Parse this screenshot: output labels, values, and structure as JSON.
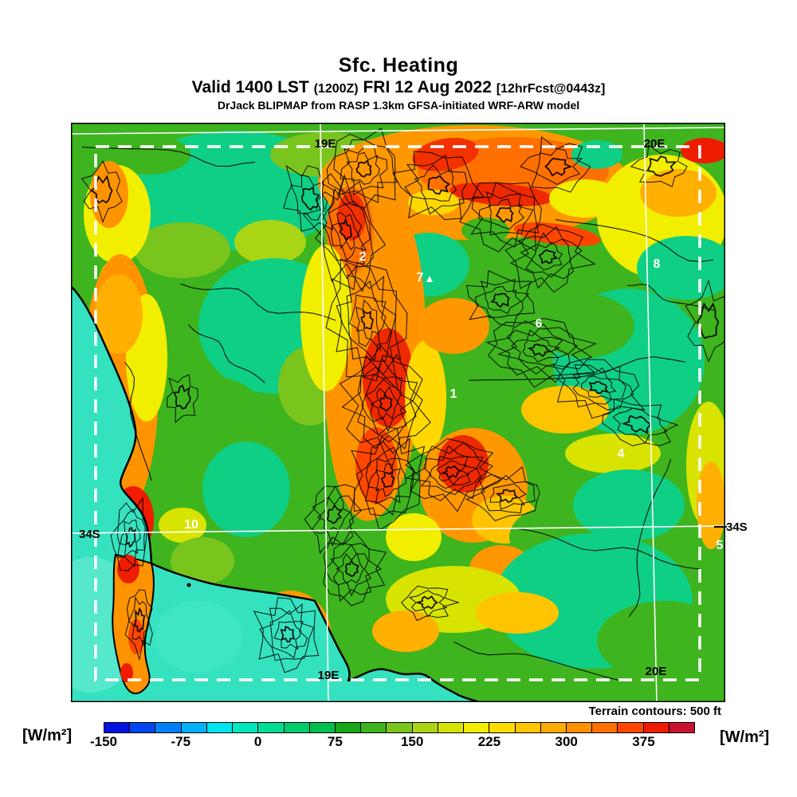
{
  "header": {
    "title": "Sfc. Heating",
    "valid": {
      "prefix": "Valid 1400 LST",
      "zulu": "(1200Z)",
      "date": "FRI 12 Aug 2022",
      "fcst": "[12hrFcst@0443z]"
    },
    "model": "DrJack BLIPMAP from RASP 1.3km GFSA-initiated WRF-ARW model"
  },
  "map": {
    "graticule": {
      "top": [
        "19E",
        "20E"
      ],
      "bottom": [
        "19E",
        "20E"
      ],
      "left": "34S",
      "right": "34S"
    },
    "waypoints": [
      {
        "label": "1"
      },
      {
        "label": "2"
      },
      {
        "label": "4"
      },
      {
        "label": "5"
      },
      {
        "label": "6"
      },
      {
        "label": "7"
      },
      {
        "label": "8"
      },
      {
        "label": "10"
      }
    ],
    "terrain_note": "Terrain contours: 500 ft",
    "sea_color": "#35e2c0"
  },
  "colorbar": {
    "unit_left": "[W/m²]",
    "unit_right": "[W/m²]",
    "ticks": [
      "-150",
      "-75",
      "0",
      "75",
      "150",
      "225",
      "300",
      "375"
    ],
    "tick_every_n_segments": 3,
    "segment_value": 25,
    "range_min": -150,
    "range_max": 425,
    "segment_colors": [
      "#0012dd",
      "#0046f0",
      "#0080f8",
      "#00b0fc",
      "#00e6ee",
      "#00e8c0",
      "#00dc96",
      "#00cc6e",
      "#00bf4e",
      "#16a616",
      "#3eb41e",
      "#7ac41e",
      "#aad514",
      "#d8e400",
      "#f2ee00",
      "#ffdc00",
      "#ffc400",
      "#ffaa00",
      "#ff9000",
      "#ff7000",
      "#ff4600",
      "#ee1c00",
      "#c81330"
    ]
  }
}
